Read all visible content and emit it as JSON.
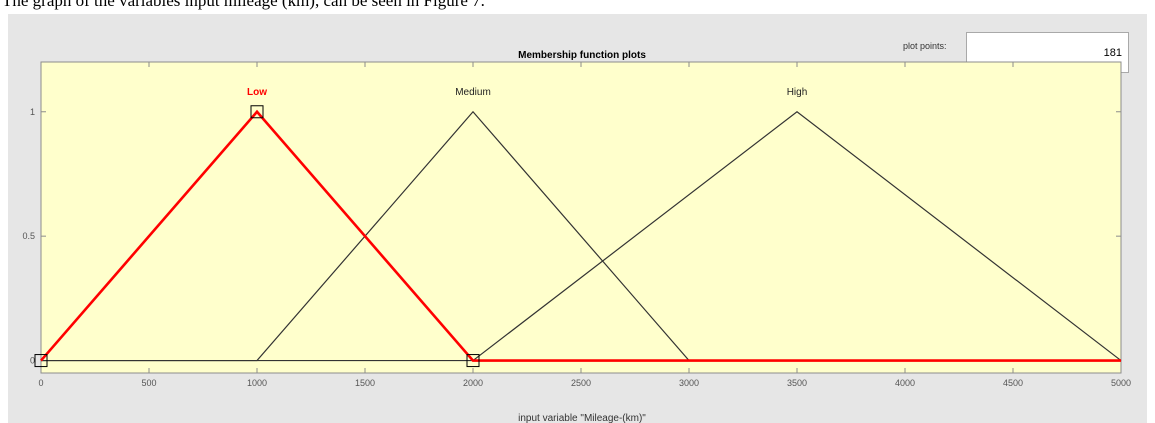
{
  "caption": "The graph of the variables input mileage (km), can be seen in Figure 7.",
  "plot_points": {
    "label": "plot points:",
    "value": "181"
  },
  "chart_data": {
    "type": "line",
    "title": "Membership function plots",
    "xlabel": "input variable \"Mileage-(km)\"",
    "ylabel": "",
    "xlim": [
      0,
      5000
    ],
    "ylim": [
      -0.05,
      1.2
    ],
    "x_ticks": [
      0,
      500,
      1000,
      1500,
      2000,
      2500,
      3000,
      3500,
      4000,
      4500,
      5000
    ],
    "y_ticks": [
      0,
      0.5,
      1
    ],
    "y_tick_labels": [
      "0",
      "0.5",
      "1"
    ],
    "grid": false,
    "selected_series": "Low",
    "series": [
      {
        "name": "Low",
        "color": "#ff0000",
        "highlighted": true,
        "points": [
          [
            0,
            0
          ],
          [
            1000,
            1
          ],
          [
            2000,
            0
          ],
          [
            5000,
            0
          ]
        ]
      },
      {
        "name": "Medium",
        "color": "#333333",
        "highlighted": false,
        "points": [
          [
            0,
            0
          ],
          [
            1000,
            0
          ],
          [
            2000,
            1
          ],
          [
            3000,
            0
          ],
          [
            5000,
            0
          ]
        ]
      },
      {
        "name": "High",
        "color": "#333333",
        "highlighted": false,
        "points": [
          [
            0,
            0
          ],
          [
            2000,
            0
          ],
          [
            3500,
            1
          ],
          [
            5000,
            0
          ]
        ]
      }
    ],
    "selection_markers": [
      [
        0,
        0
      ],
      [
        1000,
        1
      ],
      [
        2000,
        0
      ]
    ],
    "label_positions": {
      "Low": 1000,
      "Medium": 2000,
      "High": 3500
    },
    "colors": {
      "plot_background": "#ffffcc",
      "selected": "#ff0000",
      "unselected": "#333333"
    }
  }
}
